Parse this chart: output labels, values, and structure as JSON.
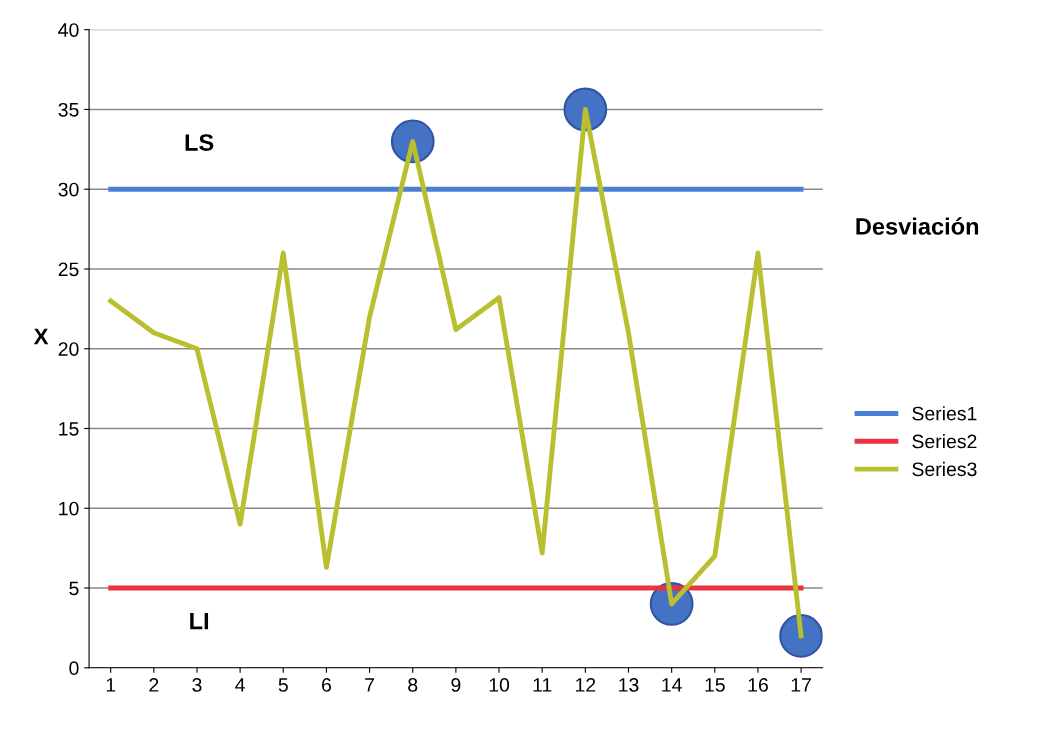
{
  "chart_data": {
    "type": "line",
    "ylabel": "X",
    "legend_title": "Desviación",
    "categories": [
      "1",
      "2",
      "3",
      "4",
      "5",
      "6",
      "7",
      "8",
      "9",
      "10",
      "11",
      "12",
      "13",
      "14",
      "15",
      "16",
      "17"
    ],
    "series": [
      {
        "name": "Series1",
        "color": "#4a7fd4",
        "values": [
          30,
          30,
          30,
          30,
          30,
          30,
          30,
          30,
          30,
          30,
          30,
          30,
          30,
          30,
          30,
          30,
          30
        ]
      },
      {
        "name": "Series2",
        "color": "#e8343f",
        "values": [
          5,
          5,
          5,
          5,
          5,
          5,
          5,
          5,
          5,
          5,
          5,
          5,
          5,
          5,
          5,
          5,
          5
        ]
      },
      {
        "name": "Series3",
        "color": "#b9bf2e",
        "values": [
          23,
          21,
          20,
          9,
          26,
          6.3,
          22,
          33,
          21.2,
          23.2,
          7.2,
          35,
          21,
          4,
          7,
          26,
          2
        ]
      },
      {
        "type": "scatter",
        "marker": "circle",
        "color": "#4472c4",
        "values": [
          null,
          null,
          null,
          null,
          null,
          null,
          null,
          33,
          null,
          null,
          null,
          35,
          null,
          4,
          null,
          null,
          2
        ]
      }
    ],
    "annotations": [
      "LS",
      "LI"
    ],
    "ylim": [
      0,
      40
    ],
    "yticks": [
      0,
      5,
      10,
      15,
      20,
      25,
      30,
      35,
      40
    ],
    "grid": "y",
    "legend": "right",
    "marker": "none",
    "line_style": "solid"
  }
}
